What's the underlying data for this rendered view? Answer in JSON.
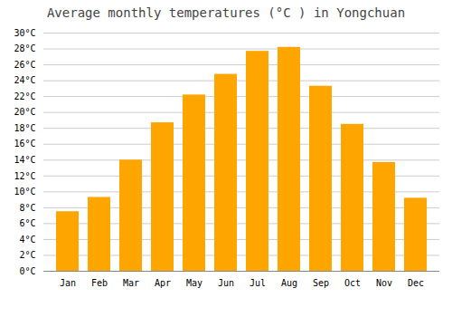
{
  "chart_data": {
    "type": "bar",
    "title": "Average monthly temperatures (°C ) in Yongchuan",
    "categories": [
      "Jan",
      "Feb",
      "Mar",
      "Apr",
      "May",
      "Jun",
      "Jul",
      "Aug",
      "Sep",
      "Oct",
      "Nov",
      "Dec"
    ],
    "values": [
      7.5,
      9.3,
      14.0,
      18.7,
      22.2,
      24.8,
      27.7,
      28.2,
      23.3,
      18.5,
      13.7,
      9.2
    ],
    "color": "#FFA500",
    "ylim": [
      0,
      30
    ],
    "yticks": [
      {
        "value": 0,
        "label": "0°C"
      },
      {
        "value": 2,
        "label": "2°C"
      },
      {
        "value": 4,
        "label": "4°C"
      },
      {
        "value": 6,
        "label": "6°C"
      },
      {
        "value": 8,
        "label": "8°C"
      },
      {
        "value": 10,
        "label": "10°C"
      },
      {
        "value": 12,
        "label": "12°C"
      },
      {
        "value": 14,
        "label": "14°C"
      },
      {
        "value": 16,
        "label": "16°C"
      },
      {
        "value": 18,
        "label": "18°C"
      },
      {
        "value": 20,
        "label": "20°C"
      },
      {
        "value": 22,
        "label": "22°C"
      },
      {
        "value": 24,
        "label": "24°C"
      },
      {
        "value": 26,
        "label": "26°C"
      },
      {
        "value": 28,
        "label": "28°C"
      },
      {
        "value": 30,
        "label": "30°C"
      }
    ],
    "grid": true
  }
}
